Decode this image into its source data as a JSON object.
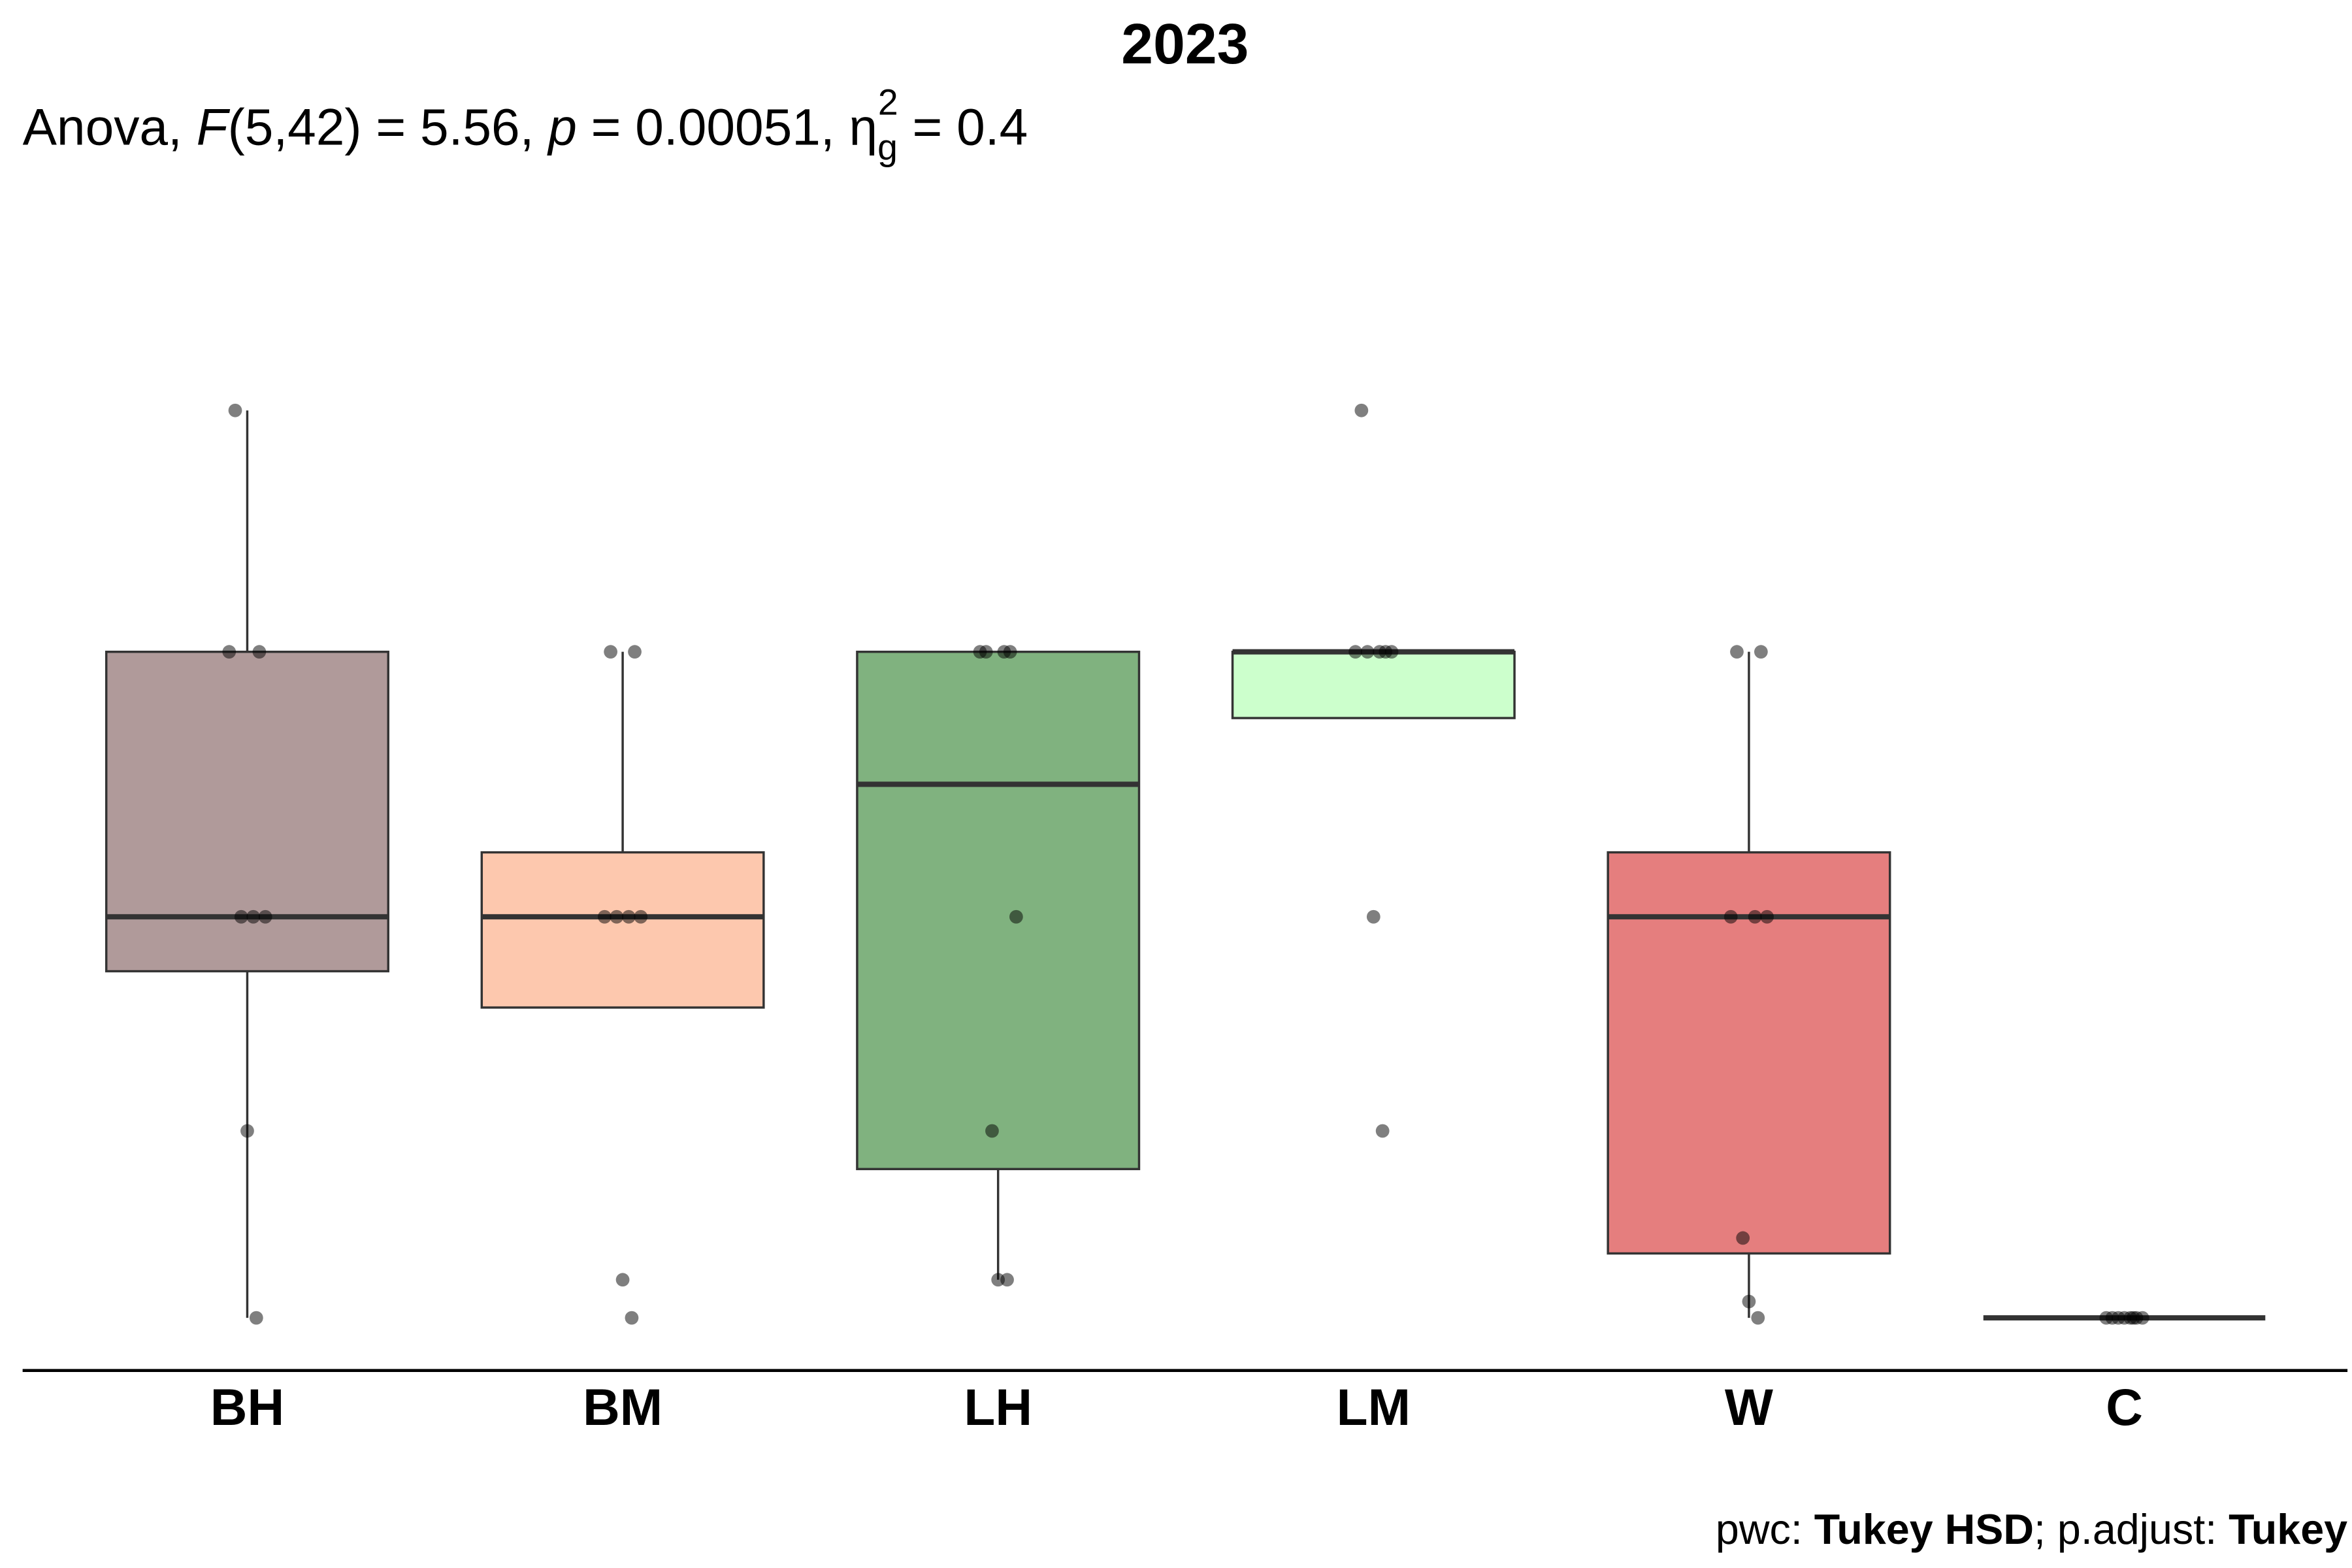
{
  "chart_data": {
    "type": "box",
    "title": "2023",
    "subtitle": [
      "Anova, ",
      "F",
      "(5,42) = 5.56, ",
      "p",
      " = 0.00051, η",
      "g",
      "2",
      " = 0.4"
    ],
    "caption": [
      "pwc: ",
      "Tukey HSD",
      "; p.adjust: ",
      "Tukey"
    ],
    "categories": [
      "BH",
      "BM",
      "LH",
      "LM",
      "W",
      "C"
    ],
    "colors": [
      "#b09a9a",
      "#fdc8ae",
      "#80b27f",
      "#ccffcc",
      "#e57e7e",
      "#333333"
    ],
    "ylim": [
      -5.8,
      112
    ],
    "boxes": [
      {
        "whislo": 0,
        "q1": 38.2,
        "median": 44.2,
        "q3": 73.4,
        "whishi": 100,
        "points": [
          100,
          73.4,
          73.4,
          44.2,
          44.2,
          44.2,
          20.6,
          0
        ]
      },
      {
        "whislo": 34.2,
        "q1": 34.2,
        "median": 44.2,
        "q3": 51.3,
        "whishi": 73.4,
        "points": [
          73.4,
          73.4,
          44.2,
          44.2,
          44.2,
          44.2,
          4.2,
          0
        ]
      },
      {
        "whislo": 4.2,
        "q1": 16.4,
        "median": 58.8,
        "q3": 73.4,
        "whishi": 73.4,
        "points": [
          73.4,
          73.4,
          73.4,
          73.4,
          44.2,
          20.6,
          4.2,
          4.2
        ]
      },
      {
        "whislo": 66.1,
        "q1": 66.1,
        "median": 73.4,
        "q3": 73.4,
        "whishi": 73.4,
        "points": [
          100,
          73.4,
          73.4,
          73.4,
          73.4,
          73.4,
          44.2,
          20.6
        ]
      },
      {
        "whislo": 0,
        "q1": 7.1,
        "median": 44.2,
        "q3": 51.3,
        "whishi": 73.4,
        "points": [
          73.4,
          73.4,
          44.2,
          44.2,
          44.2,
          8.8,
          1.8,
          0
        ]
      },
      {
        "whislo": 0,
        "q1": 0,
        "median": 0,
        "q3": 0,
        "whishi": 0,
        "points": [
          0,
          0,
          0,
          0,
          0,
          0,
          0,
          0
        ]
      }
    ]
  }
}
